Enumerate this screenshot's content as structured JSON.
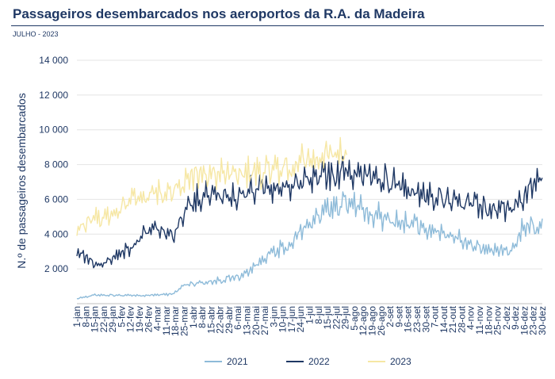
{
  "chart_data": {
    "type": "line",
    "title": "Passageiros desembarcados nos aeroportos da R.A. da Madeira",
    "subtitle": "JULHO - 2023",
    "ylabel": "N.º de passageiros desembarcados",
    "xlabel": "",
    "ylim": [
      0,
      14000
    ],
    "yticks": [
      2000,
      4000,
      6000,
      8000,
      10000,
      12000,
      14000
    ],
    "ytick_labels": [
      "2 000",
      "4 000",
      "6 000",
      "8 000",
      "10 000",
      "12 000",
      "14 000"
    ],
    "days_in_year": 365,
    "x_tick_labels": [
      "1-jan",
      "8-jan",
      "15-jan",
      "22-jan",
      "29-jan",
      "5-fev",
      "12-fev",
      "19-fev",
      "26-fev",
      "4-mar",
      "11-mar",
      "18-mar",
      "25-mar",
      "1-abr",
      "8-abr",
      "15-abr",
      "22-abr",
      "29-abr",
      "6-mai",
      "13-mai",
      "20-mai",
      "27-mai",
      "3-jun",
      "10-jun",
      "17-jun",
      "24-jun",
      "1-jul",
      "8-jul",
      "15-jul",
      "22-jul",
      "29-jul",
      "5-ago",
      "12-ago",
      "19-ago",
      "26-ago",
      "2-set",
      "9-set",
      "16-set",
      "23-set",
      "30-set",
      "7-out",
      "14-out",
      "21-out",
      "28-out",
      "4-nov",
      "11-nov",
      "18-nov",
      "25-nov",
      "2-dez",
      "9-dez",
      "16-dez",
      "23-dez",
      "30-dez"
    ],
    "legend_position": "bottom",
    "series": [
      {
        "name": "2021",
        "color": "#8ebbd9",
        "days": 365,
        "weekly_profile": [
          {
            "day": 0,
            "value": 300
          },
          {
            "day": 15,
            "value": 500
          },
          {
            "day": 50,
            "value": 450
          },
          {
            "day": 75,
            "value": 550
          },
          {
            "day": 85,
            "value": 1100
          },
          {
            "day": 110,
            "value": 1300
          },
          {
            "day": 130,
            "value": 1600
          },
          {
            "day": 150,
            "value": 2800
          },
          {
            "day": 165,
            "value": 3200
          },
          {
            "day": 180,
            "value": 4500
          },
          {
            "day": 200,
            "value": 5500
          },
          {
            "day": 215,
            "value": 5800
          },
          {
            "day": 230,
            "value": 5000
          },
          {
            "day": 260,
            "value": 4500
          },
          {
            "day": 290,
            "value": 4000
          },
          {
            "day": 320,
            "value": 3000
          },
          {
            "day": 340,
            "value": 3000
          },
          {
            "day": 350,
            "value": 4500
          },
          {
            "day": 364,
            "value": 4300
          }
        ],
        "amplitude": 0.32
      },
      {
        "name": "2022",
        "color": "#1f3864",
        "days": 365,
        "weekly_profile": [
          {
            "day": 0,
            "value": 3000
          },
          {
            "day": 15,
            "value": 2200
          },
          {
            "day": 30,
            "value": 2600
          },
          {
            "day": 45,
            "value": 3300
          },
          {
            "day": 60,
            "value": 4500
          },
          {
            "day": 75,
            "value": 3800
          },
          {
            "day": 90,
            "value": 5800
          },
          {
            "day": 105,
            "value": 6300
          },
          {
            "day": 125,
            "value": 6200
          },
          {
            "day": 150,
            "value": 6600
          },
          {
            "day": 170,
            "value": 6700
          },
          {
            "day": 190,
            "value": 7300
          },
          {
            "day": 215,
            "value": 7600
          },
          {
            "day": 240,
            "value": 7000
          },
          {
            "day": 270,
            "value": 6300
          },
          {
            "day": 300,
            "value": 5800
          },
          {
            "day": 330,
            "value": 5300
          },
          {
            "day": 345,
            "value": 5700
          },
          {
            "day": 364,
            "value": 7300
          }
        ],
        "amplitude": 0.24
      },
      {
        "name": "2023",
        "color": "#f6e7a4",
        "days": 212,
        "weekly_profile": [
          {
            "day": 0,
            "value": 4400
          },
          {
            "day": 15,
            "value": 4800
          },
          {
            "day": 30,
            "value": 5300
          },
          {
            "day": 50,
            "value": 6200
          },
          {
            "day": 70,
            "value": 6400
          },
          {
            "day": 90,
            "value": 7300
          },
          {
            "day": 110,
            "value": 7400
          },
          {
            "day": 140,
            "value": 7400
          },
          {
            "day": 160,
            "value": 7700
          },
          {
            "day": 180,
            "value": 8200
          },
          {
            "day": 200,
            "value": 8500
          },
          {
            "day": 211,
            "value": 8600
          }
        ],
        "amplitude": 0.2
      }
    ]
  }
}
